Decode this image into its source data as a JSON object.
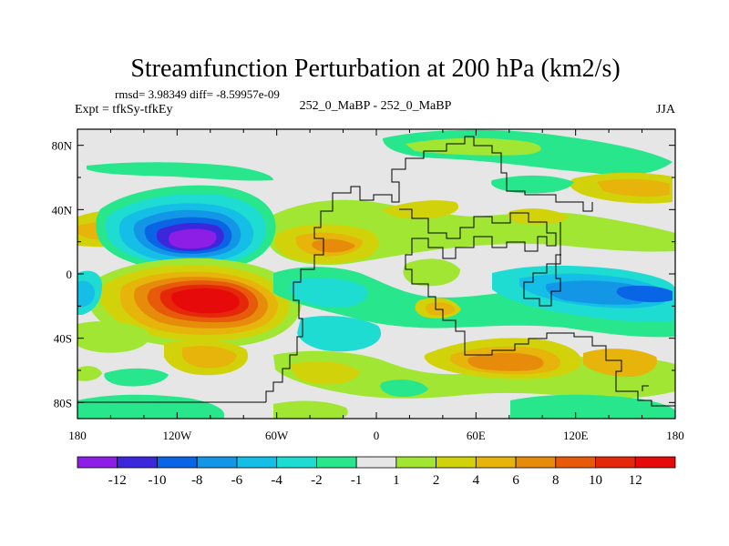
{
  "chart_data": {
    "type": "heatmap",
    "subtype": "filled-contour-map",
    "title": "Streamfunction Perturbation at 200 hPa (km2/s)",
    "stats": "rmsd= 3.98349 diff= -8.59957e-09",
    "left_label": "Expt = tfkSy-tfkEy",
    "center_label": "252_0_MaBP - 252_0_MaBP",
    "right_label": "JJA",
    "x_range": [
      -180,
      180
    ],
    "y_range": [
      -90,
      90
    ],
    "x_ticks": [
      {
        "value": -180,
        "label": "180"
      },
      {
        "value": -120,
        "label": "120W"
      },
      {
        "value": -60,
        "label": "60W"
      },
      {
        "value": 0,
        "label": "0"
      },
      {
        "value": 60,
        "label": "60E"
      },
      {
        "value": 120,
        "label": "120E"
      },
      {
        "value": 180,
        "label": "180"
      }
    ],
    "y_ticks": [
      {
        "value": 80,
        "label": "80N"
      },
      {
        "value": 40,
        "label": "40N"
      },
      {
        "value": 0,
        "label": "0"
      },
      {
        "value": -40,
        "label": "40S"
      },
      {
        "value": -80,
        "label": "80S"
      }
    ],
    "colorbar": {
      "levels": [
        "-12",
        "-10",
        "-8",
        "-6",
        "-4",
        "-2",
        "-1",
        "1",
        "2",
        "4",
        "6",
        "8",
        "10",
        "12"
      ],
      "colors": [
        "#8c1ee6",
        "#3c28dc",
        "#0a64e6",
        "#1496e6",
        "#14bee6",
        "#1edcd2",
        "#28e68c",
        "#e6e6e6",
        "#a0e632",
        "#d2d20a",
        "#e6b40a",
        "#e68c0a",
        "#e65a0a",
        "#e6280a",
        "#e60a0a"
      ]
    },
    "features": [
      {
        "name": "negative-center-pacific",
        "lon": -103,
        "lat": 17,
        "value": -13
      },
      {
        "name": "positive-center-pacific",
        "lon": -88,
        "lat": -13,
        "value": 13
      },
      {
        "name": "positive-north-pacific",
        "lon": -150,
        "lat": 20,
        "value": 6
      },
      {
        "name": "positive-atlantic",
        "lon": -28,
        "lat": 12,
        "value": 8
      },
      {
        "name": "negative-south-pacific",
        "lon": -152,
        "lat": -22,
        "value": -4
      },
      {
        "name": "negative-indian-ocean",
        "lon": 120,
        "lat": -10,
        "value": -7
      },
      {
        "name": "positive-south-indian",
        "lon": 80,
        "lat": -45,
        "value": 7
      },
      {
        "name": "positive-south-pacific",
        "lon": -130,
        "lat": -48,
        "value": 6
      },
      {
        "name": "positive-high-lat-east",
        "lon": 155,
        "lat": 48,
        "value": 5
      },
      {
        "name": "negative-south-atlantic",
        "lon": -25,
        "lat": -40,
        "value": -3
      }
    ]
  }
}
